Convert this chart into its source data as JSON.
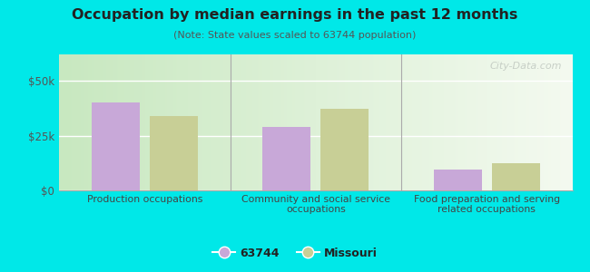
{
  "title": "Occupation by median earnings in the past 12 months",
  "subtitle": "(Note: State values scaled to 63744 population)",
  "categories": [
    "Production occupations",
    "Community and social service\noccupations",
    "Food preparation and serving\nrelated occupations"
  ],
  "values_63744": [
    40000,
    29000,
    9500
  ],
  "values_missouri": [
    34000,
    37000,
    12500
  ],
  "color_63744": "#c8a8d8",
  "color_missouri": "#c8cf96",
  "ylim": [
    0,
    62000
  ],
  "yticks": [
    0,
    25000,
    50000
  ],
  "ytick_labels": [
    "$0",
    "$25k",
    "$50k"
  ],
  "bg_left_color": "#c8e8c0",
  "bg_right_color": "#f0f8f0",
  "outer_background": "#00e8e8",
  "legend_label_1": "63744",
  "legend_label_2": "Missouri",
  "watermark": "City-Data.com",
  "bar_width": 0.28
}
